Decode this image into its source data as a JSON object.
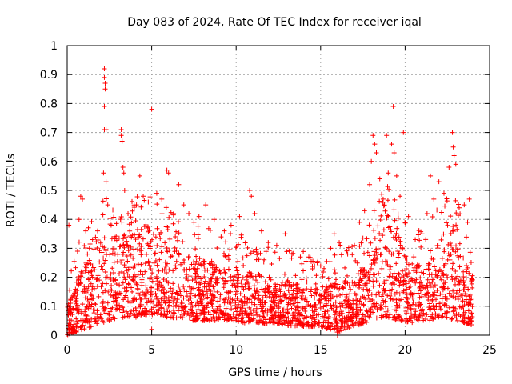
{
  "chart_data": {
    "type": "scatter",
    "title": "Day 083 of 2024, Rate Of TEC Index for receiver iqal",
    "xlabel": "GPS time / hours",
    "ylabel": "ROTI / TECUs",
    "xlim": [
      0,
      25
    ],
    "ylim": [
      0,
      1
    ],
    "x_ticks": [
      0,
      5,
      10,
      15,
      20,
      25
    ],
    "y_ticks": [
      0,
      0.1,
      0.2,
      0.3,
      0.4,
      0.5,
      0.6,
      0.7,
      0.8,
      0.9,
      1
    ],
    "x_tick_labels": [
      "0",
      "5",
      "10",
      "15",
      "20",
      "25"
    ],
    "y_tick_labels": [
      "0",
      "0.1",
      "0.2",
      "0.3",
      "0.4",
      "0.5",
      "0.6",
      "0.7",
      "0.8",
      "0.9",
      "1"
    ],
    "grid": true,
    "marker": "+",
    "color": "#ff0000",
    "series": [
      {
        "name": "ROTI",
        "points": [
          [
            0.1,
            0.38
          ],
          [
            0.7,
            0.4
          ],
          [
            0.8,
            0.48
          ],
          [
            0.9,
            0.47
          ],
          [
            1.2,
            0.28
          ],
          [
            1.5,
            0.33
          ],
          [
            1.8,
            0.36
          ],
          [
            2.2,
            0.92
          ],
          [
            2.2,
            0.89
          ],
          [
            2.25,
            0.87
          ],
          [
            2.25,
            0.85
          ],
          [
            2.2,
            0.79
          ],
          [
            2.2,
            0.71
          ],
          [
            2.3,
            0.71
          ],
          [
            2.15,
            0.56
          ],
          [
            2.3,
            0.53
          ],
          [
            2.4,
            0.45
          ],
          [
            2.6,
            0.38
          ],
          [
            3.2,
            0.71
          ],
          [
            3.2,
            0.69
          ],
          [
            3.25,
            0.67
          ],
          [
            3.3,
            0.58
          ],
          [
            3.35,
            0.56
          ],
          [
            3.4,
            0.5
          ],
          [
            3.6,
            0.42
          ],
          [
            4.1,
            0.45
          ],
          [
            4.3,
            0.55
          ],
          [
            4.5,
            0.48
          ],
          [
            4.8,
            0.46
          ],
          [
            5.0,
            0.78
          ],
          [
            5.0,
            0.02
          ],
          [
            5.3,
            0.49
          ],
          [
            5.6,
            0.47
          ],
          [
            5.9,
            0.57
          ],
          [
            6.0,
            0.56
          ],
          [
            6.3,
            0.42
          ],
          [
            6.6,
            0.52
          ],
          [
            6.9,
            0.45
          ],
          [
            7.2,
            0.42
          ],
          [
            7.5,
            0.39
          ],
          [
            7.8,
            0.41
          ],
          [
            8.2,
            0.45
          ],
          [
            8.7,
            0.4
          ],
          [
            9.3,
            0.36
          ],
          [
            9.7,
            0.38
          ],
          [
            10.2,
            0.41
          ],
          [
            10.8,
            0.5
          ],
          [
            10.9,
            0.48
          ],
          [
            11.1,
            0.42
          ],
          [
            11.5,
            0.36
          ],
          [
            11.9,
            0.32
          ],
          [
            12.4,
            0.31
          ],
          [
            12.9,
            0.35
          ],
          [
            13.3,
            0.28
          ],
          [
            13.8,
            0.27
          ],
          [
            14.3,
            0.27
          ],
          [
            14.8,
            0.25
          ],
          [
            15.2,
            0.23
          ],
          [
            15.6,
            0.3
          ],
          [
            15.8,
            0.35
          ],
          [
            16.1,
            0.32
          ],
          [
            16.6,
            0.28
          ],
          [
            17.0,
            0.31
          ],
          [
            17.3,
            0.39
          ],
          [
            17.6,
            0.43
          ],
          [
            17.9,
            0.52
          ],
          [
            18.0,
            0.6
          ],
          [
            18.1,
            0.69
          ],
          [
            18.2,
            0.66
          ],
          [
            18.3,
            0.63
          ],
          [
            18.5,
            0.54
          ],
          [
            18.7,
            0.47
          ],
          [
            18.9,
            0.69
          ],
          [
            19.0,
            0.56
          ],
          [
            19.2,
            0.66
          ],
          [
            19.3,
            0.79
          ],
          [
            19.35,
            0.63
          ],
          [
            19.5,
            0.55
          ],
          [
            19.7,
            0.48
          ],
          [
            19.9,
            0.7
          ],
          [
            20.2,
            0.41
          ],
          [
            20.6,
            0.33
          ],
          [
            21.0,
            0.35
          ],
          [
            21.3,
            0.42
          ],
          [
            21.5,
            0.55
          ],
          [
            21.7,
            0.47
          ],
          [
            22.0,
            0.53
          ],
          [
            22.3,
            0.49
          ],
          [
            22.6,
            0.58
          ],
          [
            22.8,
            0.7
          ],
          [
            22.85,
            0.65
          ],
          [
            22.9,
            0.62
          ],
          [
            23.0,
            0.59
          ],
          [
            23.2,
            0.44
          ],
          [
            23.5,
            0.45
          ],
          [
            23.7,
            0.39
          ],
          [
            23.8,
            0.47
          ],
          [
            23.9,
            0.05
          ],
          [
            0.1,
            0.01
          ],
          [
            16.0,
            0.0
          ]
        ]
      }
    ],
    "density_envelope_note": "bulk of points fill between a low floor and an upper envelope",
    "envelope": {
      "x": [
        0,
        0.5,
        1,
        1.5,
        2,
        2.5,
        3,
        3.5,
        4,
        4.5,
        5,
        5.5,
        6,
        6.5,
        7,
        7.5,
        8,
        8.5,
        9,
        9.5,
        10,
        10.5,
        11,
        11.5,
        12,
        12.5,
        13,
        13.5,
        14,
        14.5,
        15,
        15.5,
        16,
        16.5,
        17,
        17.5,
        18,
        18.5,
        19,
        19.5,
        20,
        20.5,
        21,
        21.5,
        22,
        22.5,
        23,
        23.5,
        24
      ],
      "upper": [
        0.1,
        0.18,
        0.24,
        0.28,
        0.34,
        0.36,
        0.38,
        0.34,
        0.36,
        0.4,
        0.38,
        0.33,
        0.32,
        0.3,
        0.28,
        0.27,
        0.26,
        0.25,
        0.24,
        0.23,
        0.24,
        0.22,
        0.22,
        0.21,
        0.2,
        0.19,
        0.19,
        0.18,
        0.17,
        0.17,
        0.16,
        0.18,
        0.2,
        0.18,
        0.2,
        0.24,
        0.34,
        0.38,
        0.4,
        0.36,
        0.28,
        0.24,
        0.26,
        0.3,
        0.34,
        0.38,
        0.36,
        0.28,
        0.22
      ],
      "lower": [
        0.0,
        0.01,
        0.02,
        0.03,
        0.04,
        0.05,
        0.06,
        0.06,
        0.06,
        0.07,
        0.07,
        0.07,
        0.06,
        0.06,
        0.06,
        0.05,
        0.05,
        0.05,
        0.05,
        0.05,
        0.05,
        0.04,
        0.04,
        0.04,
        0.04,
        0.04,
        0.03,
        0.03,
        0.03,
        0.03,
        0.03,
        0.02,
        0.01,
        0.02,
        0.03,
        0.04,
        0.05,
        0.06,
        0.06,
        0.05,
        0.04,
        0.04,
        0.05,
        0.05,
        0.06,
        0.06,
        0.05,
        0.04,
        0.03
      ],
      "sample_count": 2400
    }
  }
}
